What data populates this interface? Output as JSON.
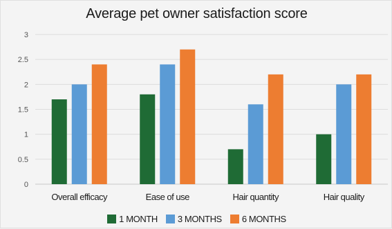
{
  "chart_data": {
    "type": "bar",
    "title": "Average pet owner satisfaction score",
    "xlabel": "",
    "ylabel": "",
    "categories": [
      "Overall efficacy",
      "Ease of use",
      "Hair quantity",
      "Hair quality"
    ],
    "series": [
      {
        "name": "1 MONTH",
        "values": [
          1.7,
          1.8,
          0.7,
          1.0
        ],
        "color": "#1f6b35"
      },
      {
        "name": "3 MONTHS",
        "values": [
          2.0,
          2.4,
          1.6,
          2.0
        ],
        "color": "#5b9bd5"
      },
      {
        "name": "6 MONTHS",
        "values": [
          2.4,
          2.7,
          2.2,
          2.2
        ],
        "color": "#ed7d31"
      }
    ],
    "ylim": [
      0,
      3
    ],
    "yticks": [
      "0",
      "0.5",
      "1",
      "1.5",
      "2",
      "2.5",
      "3"
    ],
    "grid": true,
    "legend": "bottom"
  }
}
